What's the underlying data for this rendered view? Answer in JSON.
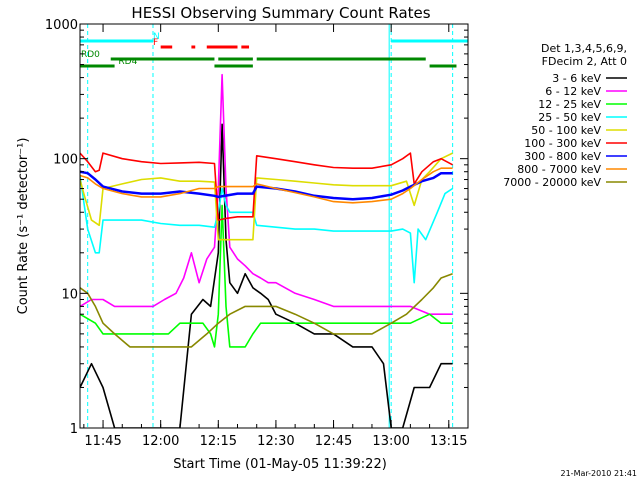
{
  "chart_data": {
    "type": "line",
    "title": "HESSI Observing Summary Count Rates",
    "xlabel": "Start Time (01-May-05 11:39:22)",
    "ylabel": "Count Rate (s⁻¹ detector⁻¹)",
    "x_start": "11:39",
    "x_end": "13:20",
    "x_ticks": [
      "11:45",
      "12:00",
      "12:15",
      "12:30",
      "12:45",
      "13:00",
      "13:15"
    ],
    "y_scale": "log",
    "ylim": [
      1,
      1000
    ],
    "y_ticks": [
      "1",
      "10",
      "100",
      "1000"
    ],
    "legend_header": [
      "Det 1,3,4,5,6,9,",
      "FDecim 2, Att 0"
    ],
    "series": [
      {
        "name": "3 - 6 keV",
        "color": "#000000",
        "points": [
          [
            "11:39",
            2
          ],
          [
            "11:42",
            3
          ],
          [
            "11:45",
            2
          ],
          [
            "11:48",
            1
          ],
          [
            "11:52",
            1
          ],
          [
            "11:56",
            1
          ],
          [
            "11:58",
            1
          ],
          [
            "12:01",
            1
          ],
          [
            "12:05",
            1
          ],
          [
            "12:08",
            7
          ],
          [
            "12:11",
            9
          ],
          [
            "12:13",
            8
          ],
          [
            "12:15",
            20
          ],
          [
            "12:16",
            180
          ],
          [
            "12:17",
            25
          ],
          [
            "12:18",
            12
          ],
          [
            "12:20",
            10
          ],
          [
            "12:22",
            14
          ],
          [
            "12:24",
            11
          ],
          [
            "12:26",
            10
          ],
          [
            "12:28",
            9
          ],
          [
            "12:30",
            7
          ],
          [
            "12:35",
            6
          ],
          [
            "12:40",
            5
          ],
          [
            "12:45",
            5
          ],
          [
            "12:50",
            4
          ],
          [
            "12:55",
            4
          ],
          [
            "12:58",
            3
          ],
          [
            "13:00",
            1
          ],
          [
            "13:03",
            1
          ],
          [
            "13:06",
            2
          ],
          [
            "13:08",
            2
          ],
          [
            "13:10",
            2
          ],
          [
            "13:13",
            3
          ],
          [
            "13:16",
            3
          ]
        ]
      },
      {
        "name": "6 - 12 keV",
        "color": "#ff00ff",
        "points": [
          [
            "11:39",
            8
          ],
          [
            "11:42",
            9
          ],
          [
            "11:45",
            9
          ],
          [
            "11:48",
            8
          ],
          [
            "11:52",
            8
          ],
          [
            "11:56",
            8
          ],
          [
            "11:58",
            8
          ],
          [
            "12:01",
            9
          ],
          [
            "12:04",
            10
          ],
          [
            "12:06",
            13
          ],
          [
            "12:08",
            20
          ],
          [
            "12:10",
            12
          ],
          [
            "12:12",
            18
          ],
          [
            "12:14",
            22
          ],
          [
            "12:15",
            60
          ],
          [
            "12:16",
            420
          ],
          [
            "12:17",
            60
          ],
          [
            "12:18",
            22
          ],
          [
            "12:20",
            18
          ],
          [
            "12:22",
            16
          ],
          [
            "12:24",
            14
          ],
          [
            "12:26",
            13
          ],
          [
            "12:28",
            12
          ],
          [
            "12:30",
            12
          ],
          [
            "12:35",
            10
          ],
          [
            "12:40",
            9
          ],
          [
            "12:45",
            8
          ],
          [
            "12:50",
            8
          ],
          [
            "12:55",
            8
          ],
          [
            "13:00",
            8
          ],
          [
            "13:05",
            8
          ],
          [
            "13:10",
            7
          ],
          [
            "13:13",
            7
          ],
          [
            "13:16",
            7
          ]
        ]
      },
      {
        "name": "12 - 25 keV",
        "color": "#00ff00",
        "points": [
          [
            "11:39",
            7
          ],
          [
            "11:43",
            6
          ],
          [
            "11:45",
            5
          ],
          [
            "11:48",
            5
          ],
          [
            "11:52",
            5
          ],
          [
            "11:56",
            5
          ],
          [
            "11:59",
            5
          ],
          [
            "12:02",
            5
          ],
          [
            "12:05",
            6
          ],
          [
            "12:08",
            6
          ],
          [
            "12:11",
            6
          ],
          [
            "12:13",
            5
          ],
          [
            "12:14",
            4
          ],
          [
            "12:15",
            7
          ],
          [
            "12:16",
            45
          ],
          [
            "12:17",
            8
          ],
          [
            "12:18",
            4
          ],
          [
            "12:20",
            4
          ],
          [
            "12:22",
            4
          ],
          [
            "12:24",
            5
          ],
          [
            "12:26",
            6
          ],
          [
            "12:30",
            6
          ],
          [
            "12:35",
            6
          ],
          [
            "12:40",
            6
          ],
          [
            "12:45",
            6
          ],
          [
            "12:50",
            6
          ],
          [
            "12:55",
            6
          ],
          [
            "13:00",
            6
          ],
          [
            "13:05",
            6
          ],
          [
            "13:10",
            7
          ],
          [
            "13:13",
            6
          ],
          [
            "13:16",
            6
          ]
        ]
      },
      {
        "name": "25 - 50 keV",
        "color": "#00ffff",
        "points": [
          [
            "11:39",
            75
          ],
          [
            "11:41",
            30
          ],
          [
            "11:43",
            20
          ],
          [
            "11:44",
            20
          ],
          [
            "11:45",
            35
          ],
          [
            "11:50",
            35
          ],
          [
            "11:55",
            35
          ],
          [
            "12:00",
            33
          ],
          [
            "12:05",
            32
          ],
          [
            "12:10",
            32
          ],
          [
            "12:14",
            31
          ],
          [
            "12:15",
            40
          ],
          [
            "12:16",
            60
          ],
          [
            "12:17",
            45
          ],
          [
            "12:18",
            40
          ],
          [
            "12:20",
            40
          ],
          [
            "12:24",
            40
          ],
          [
            "12:25",
            32
          ],
          [
            "12:30",
            31
          ],
          [
            "12:35",
            30
          ],
          [
            "12:40",
            30
          ],
          [
            "12:45",
            29
          ],
          [
            "12:50",
            29
          ],
          [
            "12:55",
            29
          ],
          [
            "13:00",
            29
          ],
          [
            "13:03",
            30
          ],
          [
            "13:05",
            28
          ],
          [
            "13:06",
            12
          ],
          [
            "13:07",
            30
          ],
          [
            "13:09",
            25
          ],
          [
            "13:12",
            40
          ],
          [
            "13:14",
            55
          ],
          [
            "13:16",
            60
          ]
        ]
      },
      {
        "name": "50 - 100 keV",
        "color": "#dddd00",
        "points": [
          [
            "11:39",
            70
          ],
          [
            "11:40",
            55
          ],
          [
            "11:42",
            35
          ],
          [
            "11:44",
            32
          ],
          [
            "11:45",
            60
          ],
          [
            "11:50",
            65
          ],
          [
            "11:55",
            70
          ],
          [
            "12:00",
            72
          ],
          [
            "12:05",
            68
          ],
          [
            "12:10",
            68
          ],
          [
            "12:14",
            67
          ],
          [
            "12:15",
            25
          ],
          [
            "12:17",
            25
          ],
          [
            "12:20",
            25
          ],
          [
            "12:24",
            25
          ],
          [
            "12:25",
            72
          ],
          [
            "12:30",
            70
          ],
          [
            "12:35",
            68
          ],
          [
            "12:40",
            66
          ],
          [
            "12:45",
            64
          ],
          [
            "12:50",
            63
          ],
          [
            "12:55",
            63
          ],
          [
            "13:00",
            63
          ],
          [
            "13:04",
            68
          ],
          [
            "13:06",
            45
          ],
          [
            "13:08",
            70
          ],
          [
            "13:10",
            80
          ],
          [
            "13:13",
            100
          ],
          [
            "13:16",
            110
          ]
        ]
      },
      {
        "name": "100 - 300 keV",
        "color": "#ff0000",
        "points": [
          [
            "11:39",
            110
          ],
          [
            "11:41",
            95
          ],
          [
            "11:43",
            80
          ],
          [
            "11:44",
            82
          ],
          [
            "11:45",
            110
          ],
          [
            "11:50",
            100
          ],
          [
            "11:55",
            95
          ],
          [
            "12:00",
            92
          ],
          [
            "12:05",
            93
          ],
          [
            "12:10",
            94
          ],
          [
            "12:14",
            92
          ],
          [
            "12:15",
            35
          ],
          [
            "12:17",
            36
          ],
          [
            "12:20",
            37
          ],
          [
            "12:24",
            37
          ],
          [
            "12:25",
            105
          ],
          [
            "12:30",
            100
          ],
          [
            "12:35",
            95
          ],
          [
            "12:40",
            90
          ],
          [
            "12:45",
            86
          ],
          [
            "12:50",
            85
          ],
          [
            "12:55",
            85
          ],
          [
            "13:00",
            90
          ],
          [
            "13:03",
            100
          ],
          [
            "13:05",
            110
          ],
          [
            "13:06",
            65
          ],
          [
            "13:08",
            80
          ],
          [
            "13:11",
            95
          ],
          [
            "13:13",
            100
          ],
          [
            "13:16",
            90
          ]
        ]
      },
      {
        "name": "300 - 800 keV",
        "color": "#0000ff",
        "points": [
          [
            "11:39",
            80
          ],
          [
            "11:41",
            78
          ],
          [
            "11:43",
            70
          ],
          [
            "11:45",
            62
          ],
          [
            "11:50",
            57
          ],
          [
            "11:55",
            55
          ],
          [
            "12:00",
            55
          ],
          [
            "12:05",
            57
          ],
          [
            "12:10",
            55
          ],
          [
            "12:14",
            53
          ],
          [
            "12:15",
            52
          ],
          [
            "12:20",
            55
          ],
          [
            "12:24",
            55
          ],
          [
            "12:25",
            62
          ],
          [
            "12:30",
            60
          ],
          [
            "12:35",
            57
          ],
          [
            "12:40",
            53
          ],
          [
            "12:45",
            51
          ],
          [
            "12:50",
            50
          ],
          [
            "12:55",
            51
          ],
          [
            "13:00",
            54
          ],
          [
            "13:03",
            58
          ],
          [
            "13:05",
            62
          ],
          [
            "13:08",
            68
          ],
          [
            "13:11",
            72
          ],
          [
            "13:13",
            78
          ],
          [
            "13:16",
            78
          ]
        ]
      },
      {
        "name": "800 - 7000 keV",
        "color": "#ff8800",
        "points": [
          [
            "11:39",
            75
          ],
          [
            "11:41",
            72
          ],
          [
            "11:43",
            65
          ],
          [
            "11:45",
            60
          ],
          [
            "11:50",
            55
          ],
          [
            "11:55",
            52
          ],
          [
            "12:00",
            52
          ],
          [
            "12:05",
            55
          ],
          [
            "12:10",
            60
          ],
          [
            "12:14",
            60
          ],
          [
            "12:15",
            62
          ],
          [
            "12:20",
            62
          ],
          [
            "12:24",
            62
          ],
          [
            "12:25",
            65
          ],
          [
            "12:30",
            60
          ],
          [
            "12:35",
            56
          ],
          [
            "12:40",
            52
          ],
          [
            "12:45",
            48
          ],
          [
            "12:50",
            47
          ],
          [
            "12:55",
            48
          ],
          [
            "13:00",
            50
          ],
          [
            "13:03",
            55
          ],
          [
            "13:05",
            60
          ],
          [
            "13:08",
            70
          ],
          [
            "13:11",
            80
          ],
          [
            "13:13",
            85
          ],
          [
            "13:16",
            85
          ]
        ]
      },
      {
        "name": "7000 - 20000 keV",
        "color": "#888800",
        "points": [
          [
            "11:39",
            11
          ],
          [
            "11:41",
            10
          ],
          [
            "11:43",
            8
          ],
          [
            "11:45",
            6
          ],
          [
            "11:48",
            5
          ],
          [
            "11:52",
            4
          ],
          [
            "11:56",
            4
          ],
          [
            "12:00",
            4
          ],
          [
            "12:04",
            4
          ],
          [
            "12:08",
            4
          ],
          [
            "12:12",
            5
          ],
          [
            "12:15",
            6
          ],
          [
            "12:18",
            7
          ],
          [
            "12:22",
            8
          ],
          [
            "12:26",
            8
          ],
          [
            "12:30",
            8
          ],
          [
            "12:35",
            7
          ],
          [
            "12:40",
            6
          ],
          [
            "12:45",
            5
          ],
          [
            "12:50",
            5
          ],
          [
            "12:55",
            5
          ],
          [
            "13:00",
            6
          ],
          [
            "13:04",
            7
          ],
          [
            "13:08",
            9
          ],
          [
            "13:11",
            11
          ],
          [
            "13:13",
            13
          ],
          [
            "13:16",
            14
          ]
        ]
      }
    ],
    "dashed_markers_color": "#00ffff",
    "dashed_markers": [
      "11:41",
      "11:58",
      "13:00",
      "13:16"
    ],
    "solid_markers_color": "#00ffff",
    "solid_markers": [
      "13:00"
    ],
    "flags": [
      {
        "name": "N",
        "color": "#00ffff",
        "label": "N",
        "label_at": "11:58",
        "segments": [
          [
            "11:39",
            "11:58"
          ],
          [
            "13:00",
            "13:20"
          ]
        ]
      },
      {
        "name": "F",
        "color": "#ff0000",
        "label": "F",
        "label_at": "11:58",
        "segments": [
          [
            "12:00",
            "12:03"
          ],
          [
            "12:08",
            "12:09"
          ],
          [
            "12:12",
            "12:20"
          ],
          [
            "12:21",
            "12:23"
          ]
        ]
      },
      {
        "name": "RD0",
        "color": "#008800",
        "label": "RD0",
        "label_at": "11:39",
        "segments": [
          [
            "11:47",
            "12:14"
          ],
          [
            "12:15",
            "12:24"
          ],
          [
            "12:25",
            "13:09"
          ]
        ]
      },
      {
        "name": "RD4",
        "color": "#008800",
        "label": "RD4",
        "label_at": "11:49",
        "segments": [
          [
            "11:39",
            "11:48"
          ],
          [
            "12:14",
            "12:24"
          ],
          [
            "13:10",
            "13:17"
          ]
        ]
      }
    ],
    "grid": false,
    "legend_position": "top-right",
    "footer_date": "21-Mar-2010 21:41"
  }
}
